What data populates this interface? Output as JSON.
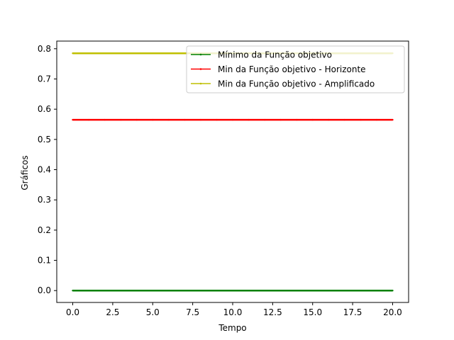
{
  "chart_data": {
    "type": "line",
    "title": "",
    "xlabel": "Tempo",
    "ylabel": "Gráficos",
    "xlim": [
      -1.0,
      21.0
    ],
    "ylim": [
      -0.0393,
      0.8253
    ],
    "xticks": [
      0.0,
      2.5,
      5.0,
      7.5,
      10.0,
      12.5,
      15.0,
      17.5,
      20.0
    ],
    "xtick_labels": [
      "0.0",
      "2.5",
      "5.0",
      "7.5",
      "10.0",
      "12.5",
      "15.0",
      "17.5",
      "20.0"
    ],
    "yticks": [
      0.0,
      0.1,
      0.2,
      0.3,
      0.4,
      0.5,
      0.6,
      0.7,
      0.8
    ],
    "ytick_labels": [
      "0.0",
      "0.1",
      "0.2",
      "0.3",
      "0.4",
      "0.5",
      "0.6",
      "0.7",
      "0.8"
    ],
    "grid": false,
    "legend_position": "top-right",
    "x": [
      0,
      1,
      2,
      3,
      4,
      5,
      6,
      7,
      8,
      9,
      10,
      11,
      12,
      13,
      14,
      15,
      16,
      17,
      18,
      19,
      20
    ],
    "series": [
      {
        "name": "Mínimo da Função objetivo",
        "color": "#008000",
        "marker": "point",
        "values": [
          0,
          0,
          0,
          0,
          0,
          0,
          0,
          0,
          0,
          0,
          0,
          0,
          0,
          0,
          0,
          0,
          0,
          0,
          0,
          0,
          0
        ]
      },
      {
        "name": "Min da Função objetivo - Horizonte",
        "color": "#ff0000",
        "marker": "point",
        "values": [
          0.565,
          0.565,
          0.565,
          0.565,
          0.565,
          0.565,
          0.565,
          0.565,
          0.565,
          0.565,
          0.565,
          0.565,
          0.565,
          0.565,
          0.565,
          0.565,
          0.565,
          0.565,
          0.565,
          0.565,
          0.565
        ]
      },
      {
        "name": "Min da Função objetivo - Amplificado",
        "color": "#bfbf00",
        "marker": "point",
        "values": [
          0.785,
          0.785,
          0.785,
          0.785,
          0.785,
          0.785,
          0.785,
          0.785,
          0.785,
          0.785,
          0.785,
          0.785,
          0.785,
          0.785,
          0.785,
          0.785,
          0.785,
          0.785,
          0.785,
          0.785,
          0.785
        ]
      }
    ]
  }
}
